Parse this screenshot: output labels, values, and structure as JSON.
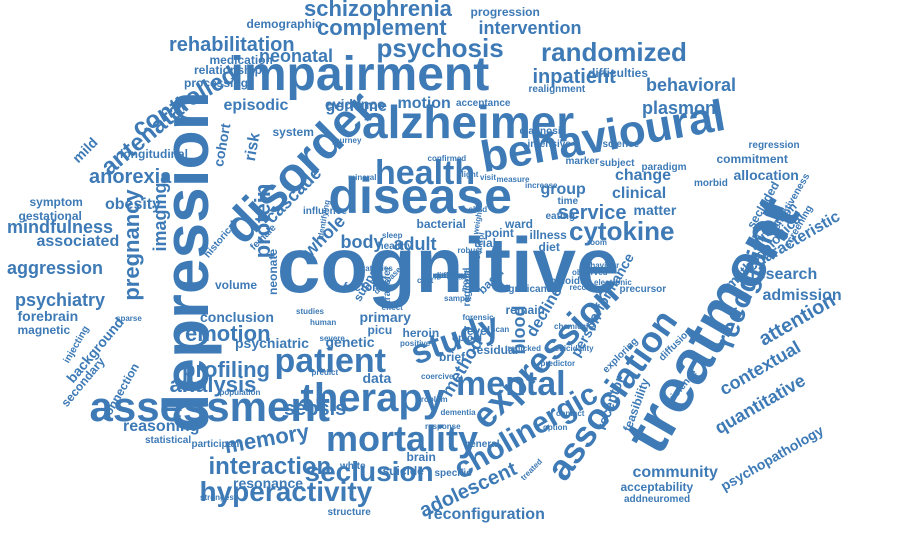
{
  "color": "#3d7ab6",
  "words": [
    "cognitive",
    "depression",
    "treatment",
    "disorder",
    "impairment",
    "alzheimer",
    "behavioural",
    "disease",
    "health",
    "assessment",
    "association",
    "expression",
    "therapy",
    "patient",
    "mortality",
    "mental",
    "study",
    "recognition",
    "hyperactivity",
    "cholinergic",
    "schizophrenia",
    "randomized",
    "psychosis",
    "complement",
    "rehabilitation",
    "neonatal",
    "intervention",
    "inpatient",
    "behavioral",
    "controlled",
    "antenatal",
    "anorexia",
    "pregnancy",
    "imaging",
    "protein",
    "cytokine",
    "service",
    "seclusion",
    "interaction",
    "memory",
    "profiling",
    "analysis",
    "emotion",
    "sepsis",
    "attention",
    "contextual",
    "quantitative",
    "psychopathology",
    "characteristic",
    "research",
    "admission",
    "community",
    "acceptability",
    "addneuromed",
    "adolescent",
    "reconfiguration",
    "resonance",
    "reasoning",
    "aggression",
    "psychiatry",
    "mindfulness",
    "associated",
    "obesity",
    "genome",
    "evidence",
    "episodic",
    "motion",
    "plasmon",
    "allocation",
    "commitment",
    "regression",
    "clinical",
    "change",
    "matter",
    "group",
    "adult",
    "body",
    "blood",
    "decline",
    "person",
    "method",
    "risk",
    "cohort",
    "cascade",
    "whole",
    "mild",
    "longitudinal",
    "symptom",
    "gestational",
    "forebrain",
    "magnetic",
    "background",
    "injecting",
    "secondary",
    "connection",
    "conclusion",
    "psychiatric",
    "genetic",
    "primary",
    "factor",
    "data",
    "brain",
    "suicide",
    "structure",
    "statistical",
    "participant",
    "population",
    "demographic",
    "progression",
    "medication",
    "relationship",
    "processing",
    "difficulties",
    "realignment",
    "acceptance",
    "diagnosis",
    "intensive",
    "science",
    "subject",
    "paradigm",
    "morbid",
    "secluded",
    "effectiveness",
    "infection",
    "methodological",
    "screening",
    "receptor",
    "feasibility",
    "diffusion",
    "violence",
    "exploring",
    "performance",
    "precursor",
    "opioids",
    "significant",
    "remain",
    "level",
    "heroin",
    "picu",
    "brief",
    "opioid",
    "system",
    "volume",
    "neonate",
    "support",
    "transfer",
    "regional",
    "basal",
    "healthy",
    "bacterial",
    "trial",
    "point",
    "ward",
    "illness",
    "diet",
    "eating",
    "time",
    "marker",
    "measure",
    "increase",
    "confirmed",
    "influence",
    "female",
    "human",
    "studies",
    "severe",
    "white",
    "specific",
    "general",
    "treated",
    "residual",
    "trafficked",
    "suicidality",
    "historical",
    "sparse",
    "predict",
    "strongest",
    "behaviour",
    "identifying",
    "database",
    "strategies",
    "positive",
    "control",
    "record",
    "month",
    "scan",
    "sample",
    "effect",
    "robust",
    "visit",
    "light",
    "journey",
    "child",
    "weight",
    "mineral",
    "sleep",
    "cost",
    "room",
    "observed",
    "electronic",
    "forensic",
    "predictor",
    "chemical",
    "coercive",
    "problem",
    "contact",
    "option",
    "dementia",
    "response",
    "pattern",
    "linking",
    "gender",
    "stigma",
    "medicine",
    "outcome",
    "pathway"
  ]
}
